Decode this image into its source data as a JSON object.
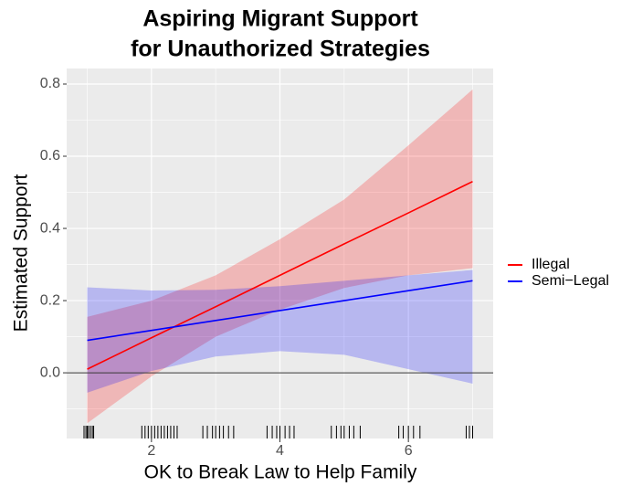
{
  "chart_data": {
    "type": "line_ribbon",
    "title": [
      "Aspiring Migrant Support",
      "for Unauthorized Strategies"
    ],
    "xlabel": "OK to Break Law to Help Family",
    "ylabel": "Estimated Support",
    "x": [
      1,
      2,
      3,
      4,
      5,
      6,
      7
    ],
    "series": [
      {
        "name": "Illegal",
        "color": "#ff0000",
        "values": [
          0.01,
          0.097,
          0.183,
          0.27,
          0.357,
          0.443,
          0.53
        ],
        "lower": [
          -0.14,
          -0.01,
          0.1,
          0.175,
          0.235,
          0.27,
          0.29
        ],
        "upper": [
          0.155,
          0.2,
          0.27,
          0.37,
          0.48,
          0.63,
          0.785
        ]
      },
      {
        "name": "Semi−Legal",
        "color": "#0000ff",
        "values": [
          0.09,
          0.1175,
          0.145,
          0.1725,
          0.2,
          0.2275,
          0.255
        ],
        "lower": [
          -0.055,
          0.005,
          0.045,
          0.06,
          0.05,
          0.01,
          -0.03
        ],
        "upper": [
          0.237,
          0.228,
          0.23,
          0.24,
          0.255,
          0.27,
          0.285
        ]
      }
    ],
    "rug": [
      0.95,
      0.98,
      1.0,
      1.02,
      1.05,
      1.08,
      1.1,
      1.85,
      1.9,
      1.95,
      2.0,
      2.05,
      2.1,
      2.15,
      2.2,
      2.25,
      2.3,
      2.35,
      2.4,
      2.8,
      2.87,
      2.95,
      3.0,
      3.06,
      3.12,
      3.2,
      3.28,
      3.8,
      3.88,
      3.95,
      4.0,
      4.08,
      4.15,
      4.22,
      4.8,
      4.88,
      4.95,
      5.0,
      5.08,
      5.15,
      5.25,
      5.85,
      5.92,
      6.0,
      6.08,
      6.18,
      6.9,
      6.95,
      7.0
    ],
    "hline": 0,
    "xlim": [
      0.68,
      7.32
    ],
    "ylim": [
      -0.182,
      0.843
    ],
    "xticks": [
      2,
      4,
      6
    ],
    "yticks": [
      {
        "value": 0,
        "label": "0.0"
      },
      0.2,
      0.4,
      0.6,
      0.8
    ],
    "grid": true,
    "legend": "right"
  }
}
